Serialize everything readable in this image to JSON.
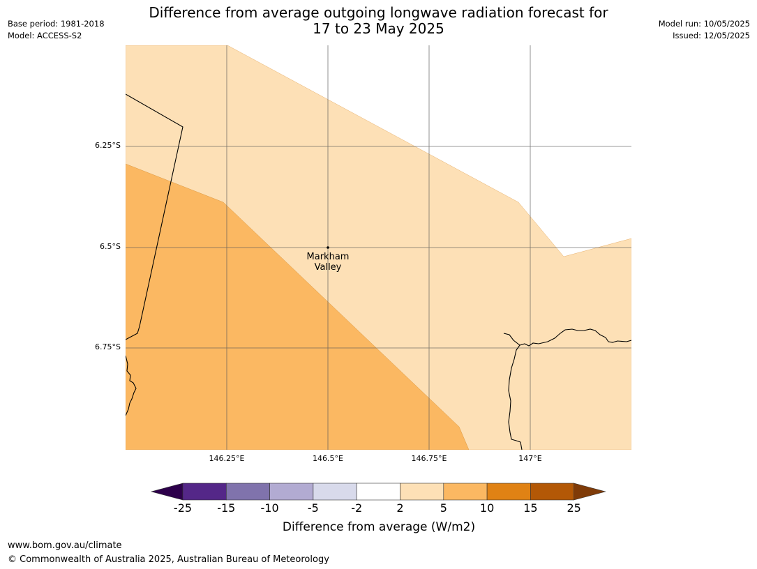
{
  "header": {
    "title_line1": "Difference from average outgoing longwave radiation forecast for",
    "title_line2": "17 to 23 May 2025",
    "base_period": "Base period: 1981-2018",
    "model": "Model: ACCESS-S2",
    "model_run": "Model run: 10/05/2025",
    "issued": "Issued: 12/05/2025"
  },
  "map": {
    "lat_ticks": [
      "6.25°S",
      "6.5°S",
      "6.75°S"
    ],
    "lon_ticks": [
      "146.25°E",
      "146.5°E",
      "146.75°E",
      "147°E"
    ],
    "place": {
      "name_line1": "Markham",
      "name_line2": "Valley"
    },
    "colors": {
      "band_2_5": "#fde0b6",
      "band_5_10": "#fbb862",
      "coast": "#000000"
    }
  },
  "colorbar": {
    "title": "Difference from average (W/m2)",
    "labels": [
      "-25",
      "-15",
      "-10",
      "-5",
      "-2",
      "2",
      "5",
      "10",
      "15",
      "25"
    ],
    "colors": [
      "#2d004b",
      "#542788",
      "#8073ac",
      "#b2abd2",
      "#d8daeb",
      "#ffffff",
      "#fde0b6",
      "#fbb862",
      "#e08214",
      "#b35806",
      "#7f3b08"
    ]
  },
  "footer": {
    "url": "www.bom.gov.au/climate",
    "copyright": "© Commonwealth of Australia 2025, Australian Bureau of Meteorology"
  }
}
